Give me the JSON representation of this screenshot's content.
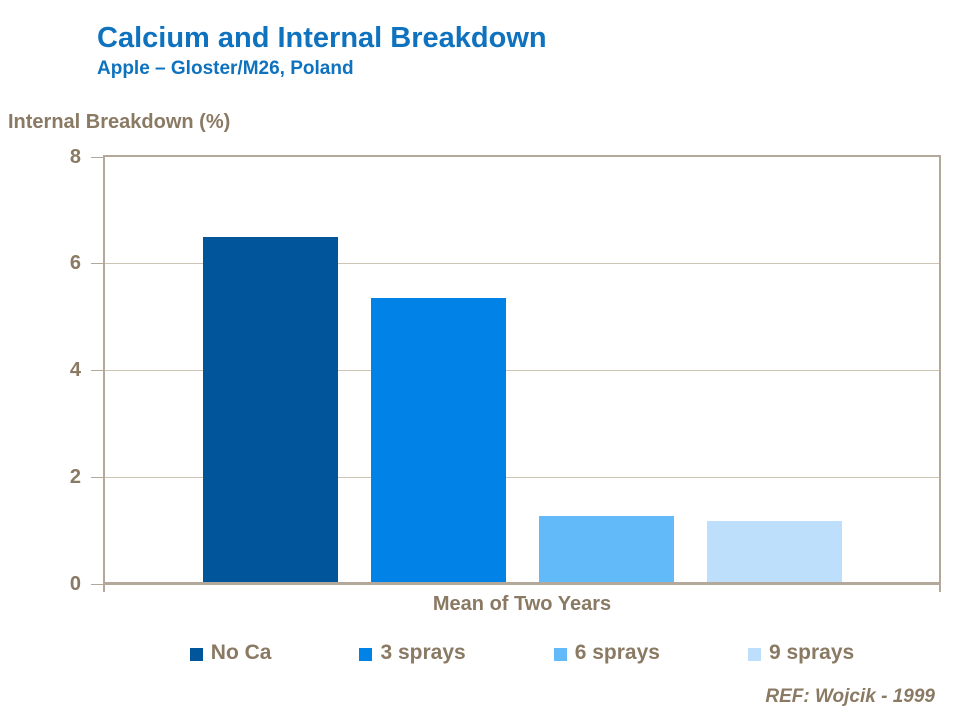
{
  "header": {
    "title": "Calcium and Internal Breakdown",
    "subtitle": "Apple – Gloster/M26, Poland"
  },
  "footer": {
    "ref": "REF: Wojcik - 1999"
  },
  "chart_data": {
    "type": "bar",
    "title": "Calcium and Internal Breakdown",
    "subtitle": "Apple – Gloster/M26, Poland",
    "ylabel": "Internal Breakdown (%)",
    "xlabel": "Mean of Two Years",
    "categories": [
      "Mean of Two Years"
    ],
    "series": [
      {
        "name": "No Ca",
        "values": [
          6.5
        ],
        "color": "#00559B"
      },
      {
        "name": "3 sprays",
        "values": [
          5.35
        ],
        "color": "#0082E6"
      },
      {
        "name": "6 sprays",
        "values": [
          1.25
        ],
        "color": "#63BAF8"
      },
      {
        "name": "9 sprays",
        "values": [
          1.15
        ],
        "color": "#BDDFFB"
      }
    ],
    "ylim": [
      0,
      8
    ],
    "yticks": [
      0,
      2,
      4,
      6,
      8
    ],
    "grid": true,
    "legend_position": "bottom",
    "annotation": "REF: Wojcik - 1999"
  },
  "colors": {
    "title_blue": "#0E72BE",
    "text_taupe": "#8A7963",
    "axis_line": "#B3A89A",
    "gridline": "#CCC3B5",
    "background": "#FFFFFF"
  }
}
